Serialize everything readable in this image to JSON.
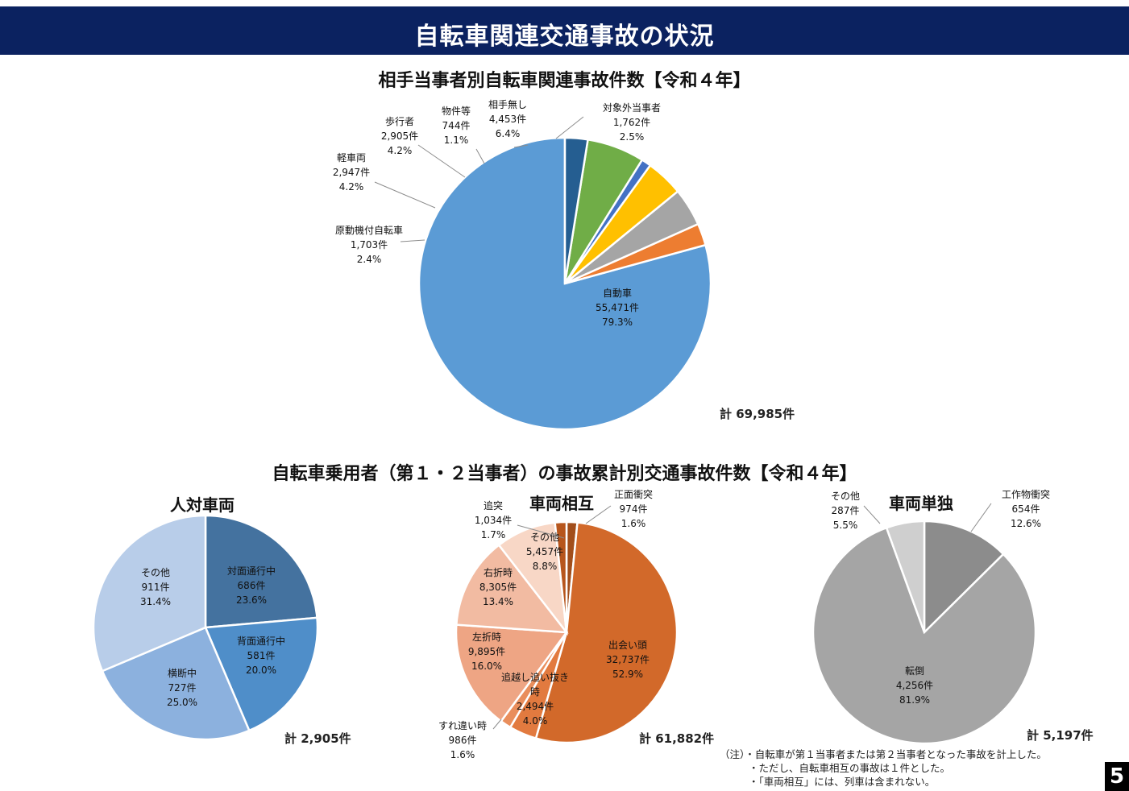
{
  "banner": {
    "title": "自転車関連交通事故の状況"
  },
  "chart_data": [
    {
      "type": "pie",
      "title": "相手当事者別自転車関連事故件数【令和４年】",
      "total": "計 69,985件",
      "slices": [
        {
          "label": "自動車",
          "count": "55,471件",
          "pct": "79.3%",
          "value": 55471,
          "color": "#5b9bd5"
        },
        {
          "label": "原動機付自転車",
          "count": "1,703件",
          "pct": "2.4%",
          "value": 1703,
          "color": "#ed7d31"
        },
        {
          "label": "軽車両",
          "count": "2,947件",
          "pct": "4.2%",
          "value": 2947,
          "color": "#a5a5a5"
        },
        {
          "label": "歩行者",
          "count": "2,905件",
          "pct": "4.2%",
          "value": 2905,
          "color": "#ffc000"
        },
        {
          "label": "物件等",
          "count": "744件",
          "pct": "1.1%",
          "value": 744,
          "color": "#4472c4"
        },
        {
          "label": "相手無し",
          "count": "4,453件",
          "pct": "6.4%",
          "value": 4453,
          "color": "#70ad47"
        },
        {
          "label": "対象外当事者",
          "count": "1,762件",
          "pct": "2.5%",
          "value": 1762,
          "color": "#255e91"
        }
      ]
    },
    {
      "type": "pie",
      "title": "人対車両",
      "total": "計 2,905件",
      "slices": [
        {
          "label": "対面通行中",
          "count": "686件",
          "pct": "23.6%",
          "value": 686,
          "color": "#44729f"
        },
        {
          "label": "背面通行中",
          "count": "581件",
          "pct": "20.0%",
          "value": 581,
          "color": "#4f8ec9"
        },
        {
          "label": "横断中",
          "count": "727件",
          "pct": "25.0%",
          "value": 727,
          "color": "#8cb1de"
        },
        {
          "label": "その他",
          "count": "911件",
          "pct": "31.4%",
          "value": 911,
          "color": "#b8cde9"
        }
      ]
    },
    {
      "type": "pie",
      "title": "車両相互",
      "total": "計 61,882件",
      "slices": [
        {
          "label": "正面衝突",
          "count": "974件",
          "pct": "1.6%",
          "value": 974,
          "color": "#a24e1b"
        },
        {
          "label": "出会い頭",
          "count": "32,737件",
          "pct": "52.9%",
          "value": 32737,
          "color": "#d2692a"
        },
        {
          "label": "追越し追い抜き時",
          "count": "2,494件",
          "pct": "4.0%",
          "value": 2494,
          "color": "#e27a3f"
        },
        {
          "label": "すれ違い時",
          "count": "986件",
          "pct": "1.6%",
          "value": 986,
          "color": "#e98e5c"
        },
        {
          "label": "左折時",
          "count": "9,895件",
          "pct": "16.0%",
          "value": 9895,
          "color": "#eea584"
        },
        {
          "label": "右折時",
          "count": "8,305件",
          "pct": "13.4%",
          "value": 8305,
          "color": "#f2bba2"
        },
        {
          "label": "その他",
          "count": "5,457件",
          "pct": "8.8%",
          "value": 5457,
          "color": "#f8d7c6"
        },
        {
          "label": "追突",
          "count": "1,034件",
          "pct": "1.7%",
          "value": 1034,
          "color": "#b7561d"
        }
      ]
    },
    {
      "type": "pie",
      "title": "車両単独",
      "total": "計 5,197件",
      "slices": [
        {
          "label": "工作物衝突",
          "count": "654件",
          "pct": "12.6%",
          "value": 654,
          "color": "#8c8c8c"
        },
        {
          "label": "転倒",
          "count": "4,256件",
          "pct": "81.9%",
          "value": 4256,
          "color": "#a5a5a5"
        },
        {
          "label": "その他",
          "count": "287件",
          "pct": "5.5%",
          "value": 287,
          "color": "#cfcfcf"
        }
      ]
    }
  ],
  "section2_title": "自転車乗用者（第１・２当事者）の事故累計別交通事故件数【令和４年】",
  "notes": [
    "（注）・自転車が第１当事者または第２当事者となった事故を計上した。",
    "・ただし、自転車相互の事故は１件とした。",
    "・「車両相互」には、列車は含まれない。"
  ],
  "page_number": "5"
}
